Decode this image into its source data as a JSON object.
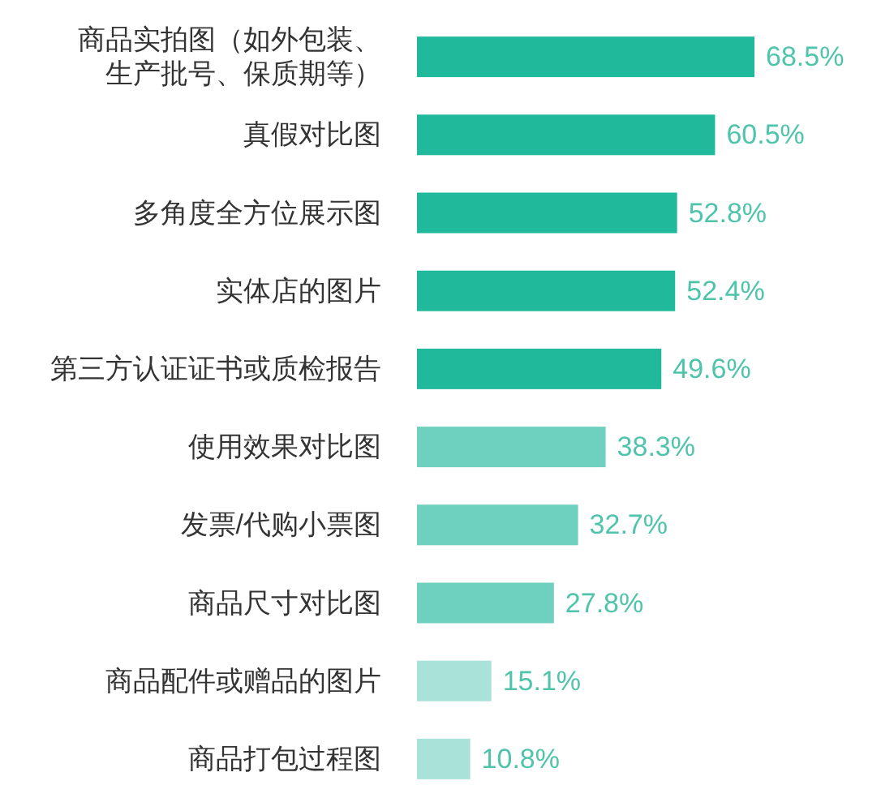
{
  "chart_data": {
    "type": "bar",
    "orientation": "horizontal",
    "categories": [
      "商品实拍图（如外包装、生产批号、保质期等）",
      "真假对比图",
      "多角度全方位展示图",
      "实体店的图片",
      "第三方认证证书或质检报告",
      "使用效果对比图",
      "发票/代购小票图",
      "商品尺寸对比图",
      "商品配件或赠品的图片",
      "商品打包过程图"
    ],
    "values": [
      68.5,
      60.5,
      52.8,
      52.4,
      49.6,
      38.3,
      32.7,
      27.8,
      15.1,
      10.8
    ],
    "colors": [
      "#21b99b",
      "#21b99b",
      "#21b99b",
      "#21b99b",
      "#21b99b",
      "#6ed0be",
      "#6ed0be",
      "#6ed0be",
      "#a9e2d8",
      "#a9e2d8"
    ],
    "value_labels": [
      "68.5%",
      "60.5%",
      "52.8%",
      "52.4%",
      "49.6%",
      "38.3%",
      "32.7%",
      "27.8%",
      "15.1%",
      "10.8%"
    ],
    "tick_labels": "y"
  }
}
